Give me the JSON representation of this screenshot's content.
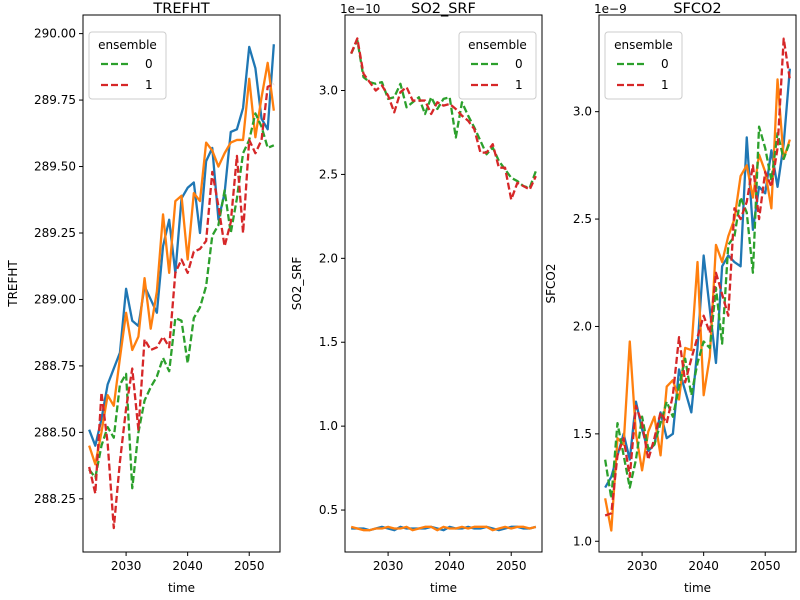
{
  "colors": {
    "solid_a": "#1f77b4",
    "solid_b": "#ff7f0e",
    "dashed_0": "#2ca02c",
    "dashed_1": "#d62728"
  },
  "chart_data": [
    {
      "type": "line",
      "title": "TREFHT",
      "xlabel": "time",
      "ylabel": "TREFHT",
      "offset_text": "",
      "xlim": [
        2023,
        2055
      ],
      "ylim": [
        288.05,
        290.07
      ],
      "xticks": [
        2030,
        2040,
        2050
      ],
      "yticks": [
        288.25,
        288.5,
        288.75,
        289.0,
        289.25,
        289.5,
        289.75,
        290.0
      ],
      "ytick_labels": [
        "288.25",
        "288.50",
        "288.75",
        "289.00",
        "289.25",
        "289.50",
        "289.75",
        "290.00"
      ],
      "grid": false,
      "legend": {
        "title": "ensemble",
        "position": "upper-left",
        "entries": [
          "0",
          "1"
        ]
      },
      "x": [
        2024,
        2025,
        2026,
        2027,
        2028,
        2029,
        2030,
        2031,
        2032,
        2033,
        2034,
        2035,
        2036,
        2037,
        2038,
        2039,
        2040,
        2041,
        2042,
        2043,
        2044,
        2045,
        2046,
        2047,
        2048,
        2049,
        2050,
        2051,
        2052,
        2053,
        2054
      ],
      "series": [
        {
          "style": "solid",
          "color_key": "solid_a",
          "values": [
            288.51,
            288.45,
            288.55,
            288.68,
            288.74,
            288.8,
            289.04,
            288.92,
            288.9,
            289.05,
            289.0,
            288.95,
            289.2,
            289.3,
            289.1,
            289.38,
            289.42,
            289.44,
            289.25,
            289.52,
            289.57,
            289.3,
            289.4,
            289.63,
            289.64,
            289.72,
            289.95,
            289.87,
            289.68,
            289.64,
            289.96
          ]
        },
        {
          "style": "solid",
          "color_key": "solid_b",
          "values": [
            288.45,
            288.38,
            288.5,
            288.64,
            288.6,
            288.78,
            288.95,
            288.81,
            288.86,
            289.08,
            288.89,
            289.03,
            289.32,
            289.1,
            289.37,
            289.39,
            289.15,
            289.4,
            289.37,
            289.59,
            289.56,
            289.5,
            289.55,
            289.59,
            289.6,
            289.6,
            289.83,
            289.61,
            289.76,
            289.89,
            289.71
          ]
        },
        {
          "style": "dashed",
          "color_key": "dashed_0",
          "values": [
            288.36,
            288.33,
            288.45,
            288.52,
            288.48,
            288.68,
            288.72,
            288.29,
            288.5,
            288.62,
            288.67,
            288.71,
            288.78,
            288.73,
            288.93,
            288.92,
            288.76,
            288.93,
            288.97,
            289.05,
            289.24,
            289.28,
            289.41,
            289.25,
            289.38,
            289.55,
            289.6,
            289.7,
            289.65,
            289.57,
            289.58
          ]
        },
        {
          "style": "dashed",
          "color_key": "dashed_1",
          "values": [
            288.37,
            288.27,
            288.65,
            288.46,
            288.14,
            288.39,
            288.59,
            288.74,
            288.51,
            288.85,
            288.81,
            288.82,
            288.86,
            288.82,
            289.1,
            289.15,
            289.1,
            289.18,
            289.19,
            289.22,
            289.48,
            289.35,
            289.2,
            289.29,
            289.54,
            289.25,
            289.6,
            289.55,
            289.6,
            289.8,
            289.81
          ]
        }
      ]
    },
    {
      "type": "line",
      "title": "SO2_SRF",
      "xlabel": "time",
      "ylabel": "SO2_SRF",
      "offset_text": "1e−10",
      "xlim": [
        2023,
        2055
      ],
      "ylim": [
        0.25,
        3.45
      ],
      "xticks": [
        2030,
        2040,
        2050
      ],
      "yticks": [
        0.5,
        1.0,
        1.5,
        2.0,
        2.5,
        3.0
      ],
      "ytick_labels": [
        "0.5",
        "1.0",
        "1.5",
        "2.0",
        "2.5",
        "3.0"
      ],
      "grid": false,
      "legend": {
        "title": "ensemble",
        "position": "upper-right",
        "entries": [
          "0",
          "1"
        ]
      },
      "x": [
        2024,
        2025,
        2026,
        2027,
        2028,
        2029,
        2030,
        2031,
        2032,
        2033,
        2034,
        2035,
        2036,
        2037,
        2038,
        2039,
        2040,
        2041,
        2042,
        2043,
        2044,
        2045,
        2046,
        2047,
        2048,
        2049,
        2050,
        2051,
        2052,
        2053,
        2054
      ],
      "series": [
        {
          "style": "solid",
          "color_key": "solid_a",
          "values": [
            0.39,
            0.39,
            0.39,
            0.38,
            0.39,
            0.4,
            0.39,
            0.38,
            0.4,
            0.39,
            0.39,
            0.39,
            0.39,
            0.4,
            0.39,
            0.38,
            0.4,
            0.39,
            0.39,
            0.4,
            0.39,
            0.39,
            0.4,
            0.39,
            0.38,
            0.39,
            0.4,
            0.4,
            0.39,
            0.39,
            0.4
          ]
        },
        {
          "style": "solid",
          "color_key": "solid_b",
          "values": [
            0.4,
            0.39,
            0.38,
            0.38,
            0.39,
            0.39,
            0.4,
            0.39,
            0.39,
            0.4,
            0.38,
            0.39,
            0.4,
            0.4,
            0.38,
            0.4,
            0.39,
            0.39,
            0.4,
            0.39,
            0.4,
            0.4,
            0.4,
            0.38,
            0.39,
            0.4,
            0.39,
            0.4,
            0.4,
            0.39,
            0.4
          ]
        },
        {
          "style": "dashed",
          "color_key": "dashed_0",
          "values": [
            3.22,
            3.3,
            3.08,
            3.05,
            3.04,
            3.05,
            2.95,
            2.96,
            3.04,
            2.9,
            2.93,
            2.96,
            2.86,
            2.96,
            2.89,
            2.95,
            2.96,
            2.72,
            2.93,
            2.85,
            2.78,
            2.7,
            2.62,
            2.66,
            2.58,
            2.53,
            2.48,
            2.46,
            2.43,
            2.42,
            2.52
          ]
        },
        {
          "style": "dashed",
          "color_key": "dashed_1",
          "values": [
            3.22,
            3.31,
            3.1,
            3.05,
            3.0,
            3.03,
            2.97,
            2.87,
            2.99,
            3.02,
            2.94,
            2.94,
            2.94,
            2.86,
            2.93,
            2.91,
            2.92,
            2.89,
            2.85,
            2.82,
            2.77,
            2.63,
            2.63,
            2.68,
            2.54,
            2.54,
            2.35,
            2.45,
            2.43,
            2.41,
            2.49
          ]
        }
      ]
    },
    {
      "type": "line",
      "title": "SFCO2",
      "xlabel": "time",
      "ylabel": "SFCO2",
      "offset_text": "1e−9",
      "xlim": [
        2023,
        2055
      ],
      "ylim": [
        0.95,
        3.45
      ],
      "xticks": [
        2030,
        2040,
        2050
      ],
      "yticks": [
        1.0,
        1.5,
        2.0,
        2.5,
        3.0
      ],
      "ytick_labels": [
        "1.0",
        "1.5",
        "2.0",
        "2.5",
        "3.0"
      ],
      "grid": false,
      "legend": {
        "title": "ensemble",
        "position": "upper-left",
        "entries": [
          "0",
          "1"
        ]
      },
      "x": [
        2024,
        2025,
        2026,
        2027,
        2028,
        2029,
        2030,
        2031,
        2032,
        2033,
        2034,
        2035,
        2036,
        2037,
        2038,
        2039,
        2040,
        2041,
        2042,
        2043,
        2044,
        2045,
        2046,
        2047,
        2048,
        2049,
        2050,
        2051,
        2052,
        2053,
        2054
      ],
      "series": [
        {
          "style": "solid",
          "color_key": "solid_a",
          "values": [
            1.25,
            1.3,
            1.4,
            1.5,
            1.38,
            1.65,
            1.52,
            1.42,
            1.45,
            1.6,
            1.48,
            1.5,
            1.8,
            1.7,
            1.6,
            1.9,
            2.33,
            2.08,
            1.83,
            2.28,
            2.33,
            2.3,
            2.28,
            2.88,
            2.45,
            2.65,
            2.62,
            2.82,
            2.65,
            2.85,
            3.2
          ]
        },
        {
          "style": "solid",
          "color_key": "solid_b",
          "values": [
            1.2,
            1.05,
            1.48,
            1.45,
            1.93,
            1.5,
            1.33,
            1.51,
            1.58,
            1.4,
            1.72,
            1.75,
            1.66,
            1.9,
            1.89,
            2.3,
            1.68,
            1.86,
            2.38,
            2.3,
            2.42,
            2.5,
            2.7,
            2.75,
            2.6,
            2.8,
            2.72,
            2.55,
            3.15,
            2.78,
            2.87
          ]
        },
        {
          "style": "dashed",
          "color_key": "dashed_0",
          "values": [
            1.38,
            1.2,
            1.55,
            1.4,
            1.25,
            1.38,
            1.58,
            1.43,
            1.45,
            1.55,
            1.65,
            1.58,
            1.72,
            1.85,
            1.68,
            1.83,
            1.93,
            1.9,
            2.18,
            1.92,
            2.38,
            2.42,
            2.6,
            2.53,
            2.25,
            2.93,
            2.83,
            2.68,
            2.9,
            2.78,
            2.86
          ]
        },
        {
          "style": "dashed",
          "color_key": "dashed_1",
          "values": [
            1.12,
            1.13,
            1.4,
            1.48,
            1.3,
            1.63,
            1.55,
            1.38,
            1.48,
            1.6,
            1.55,
            1.68,
            1.95,
            1.74,
            1.85,
            1.95,
            2.05,
            1.97,
            2.25,
            2.15,
            2.05,
            2.55,
            2.5,
            2.58,
            2.75,
            2.5,
            2.72,
            2.65,
            2.83,
            3.34,
            3.15
          ]
        }
      ]
    }
  ]
}
